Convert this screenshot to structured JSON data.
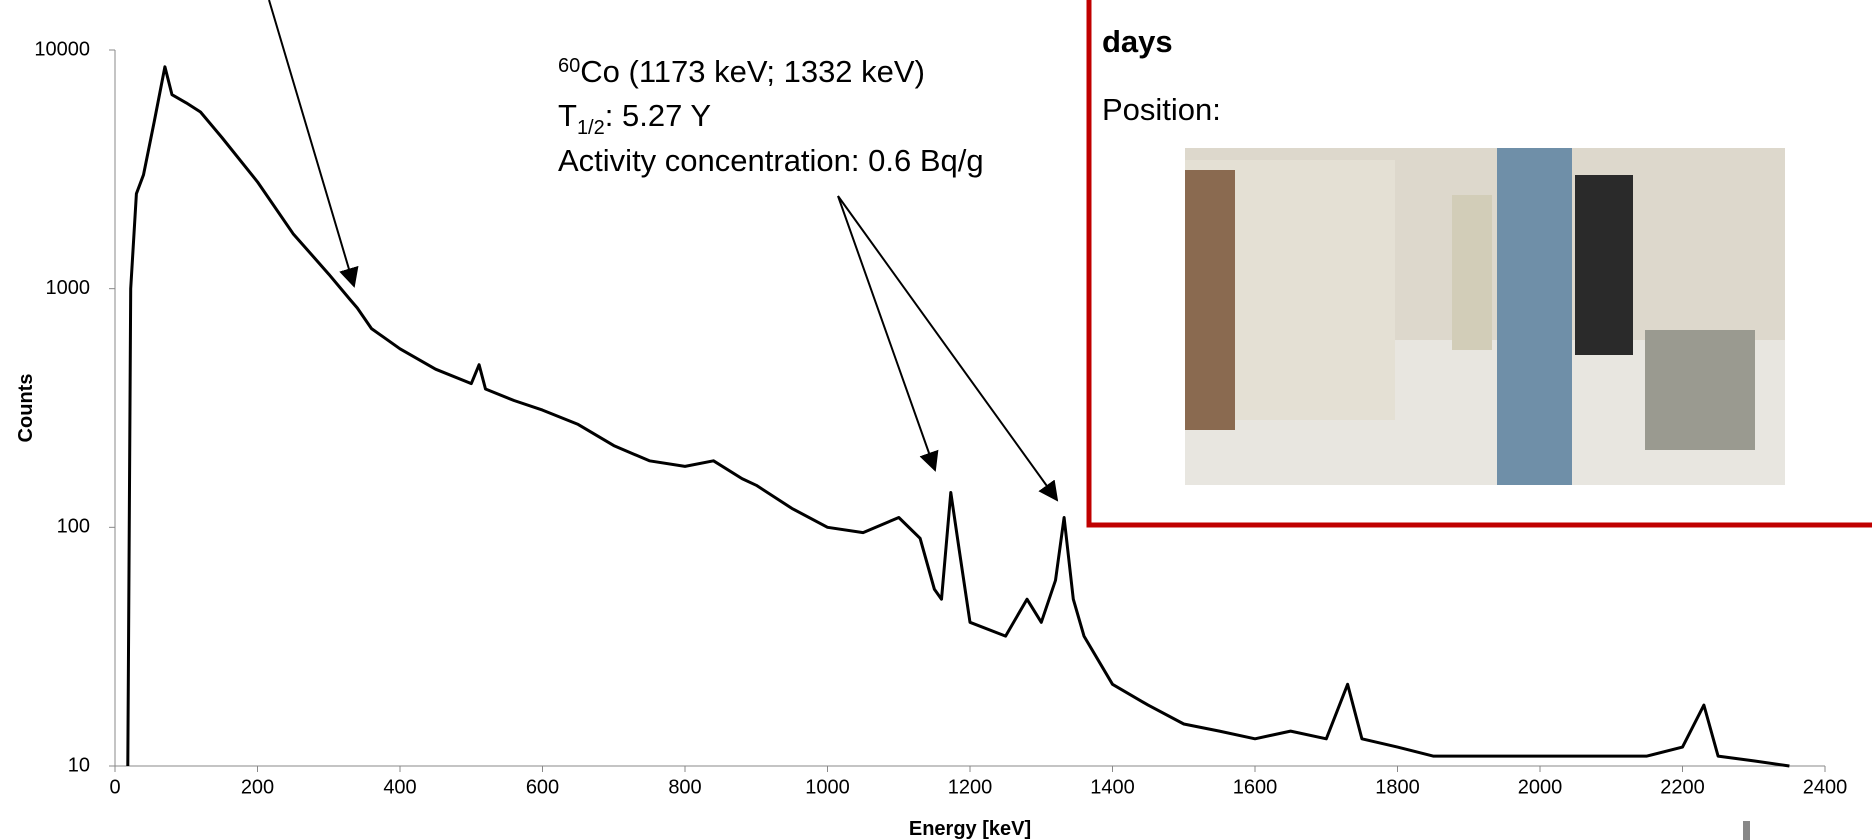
{
  "chart_data": {
    "type": "line",
    "x_label": "Energy [keV]",
    "y_label": "Counts",
    "xlim": [
      0,
      2400
    ],
    "xticks": [
      0,
      200,
      400,
      600,
      800,
      1000,
      1200,
      1400,
      1600,
      1800,
      2000,
      2200,
      2400
    ],
    "ylim": [
      10,
      10000
    ],
    "yticks": [
      10,
      100,
      1000,
      10000
    ],
    "log_y": true,
    "color": "#000000",
    "x": [
      18,
      22,
      30,
      40,
      55,
      70,
      80,
      100,
      120,
      150,
      200,
      250,
      300,
      330,
      340,
      360,
      400,
      450,
      500,
      511,
      520,
      560,
      600,
      650,
      700,
      750,
      800,
      840,
      880,
      900,
      950,
      1000,
      1050,
      1100,
      1130,
      1150,
      1160,
      1173,
      1185,
      1200,
      1250,
      1280,
      1300,
      1320,
      1332,
      1345,
      1360,
      1400,
      1450,
      1500,
      1550,
      1600,
      1650,
      1700,
      1730,
      1750,
      1800,
      1850,
      1900,
      1950,
      2000,
      2050,
      2100,
      2150,
      2200,
      2230,
      2250,
      2300,
      2350
    ],
    "values": [
      10,
      1000,
      2500,
      3000,
      5000,
      8500,
      6500,
      6000,
      5500,
      4300,
      2800,
      1700,
      1150,
      900,
      830,
      680,
      560,
      460,
      400,
      480,
      380,
      340,
      310,
      270,
      220,
      190,
      180,
      190,
      160,
      150,
      120,
      100,
      95,
      110,
      90,
      55,
      50,
      140,
      80,
      40,
      35,
      50,
      40,
      60,
      110,
      50,
      35,
      22,
      18,
      15,
      14,
      13,
      14,
      13,
      22,
      13,
      12,
      11,
      11,
      11,
      11,
      11,
      11,
      11,
      12,
      18,
      11,
      10.5,
      10
    ],
    "annotation": {
      "isotope_mass": "60",
      "isotope_text": "Co (1173 keV; 1332 keV)",
      "half_life_symbol": "T",
      "half_life_sub": "1/2",
      "half_life_text": ": 5.27 Y",
      "activity": "Activity concentration: 0.6 Bq/g"
    }
  },
  "panel": {
    "duration_unit": "days",
    "position_label": "Position:"
  }
}
